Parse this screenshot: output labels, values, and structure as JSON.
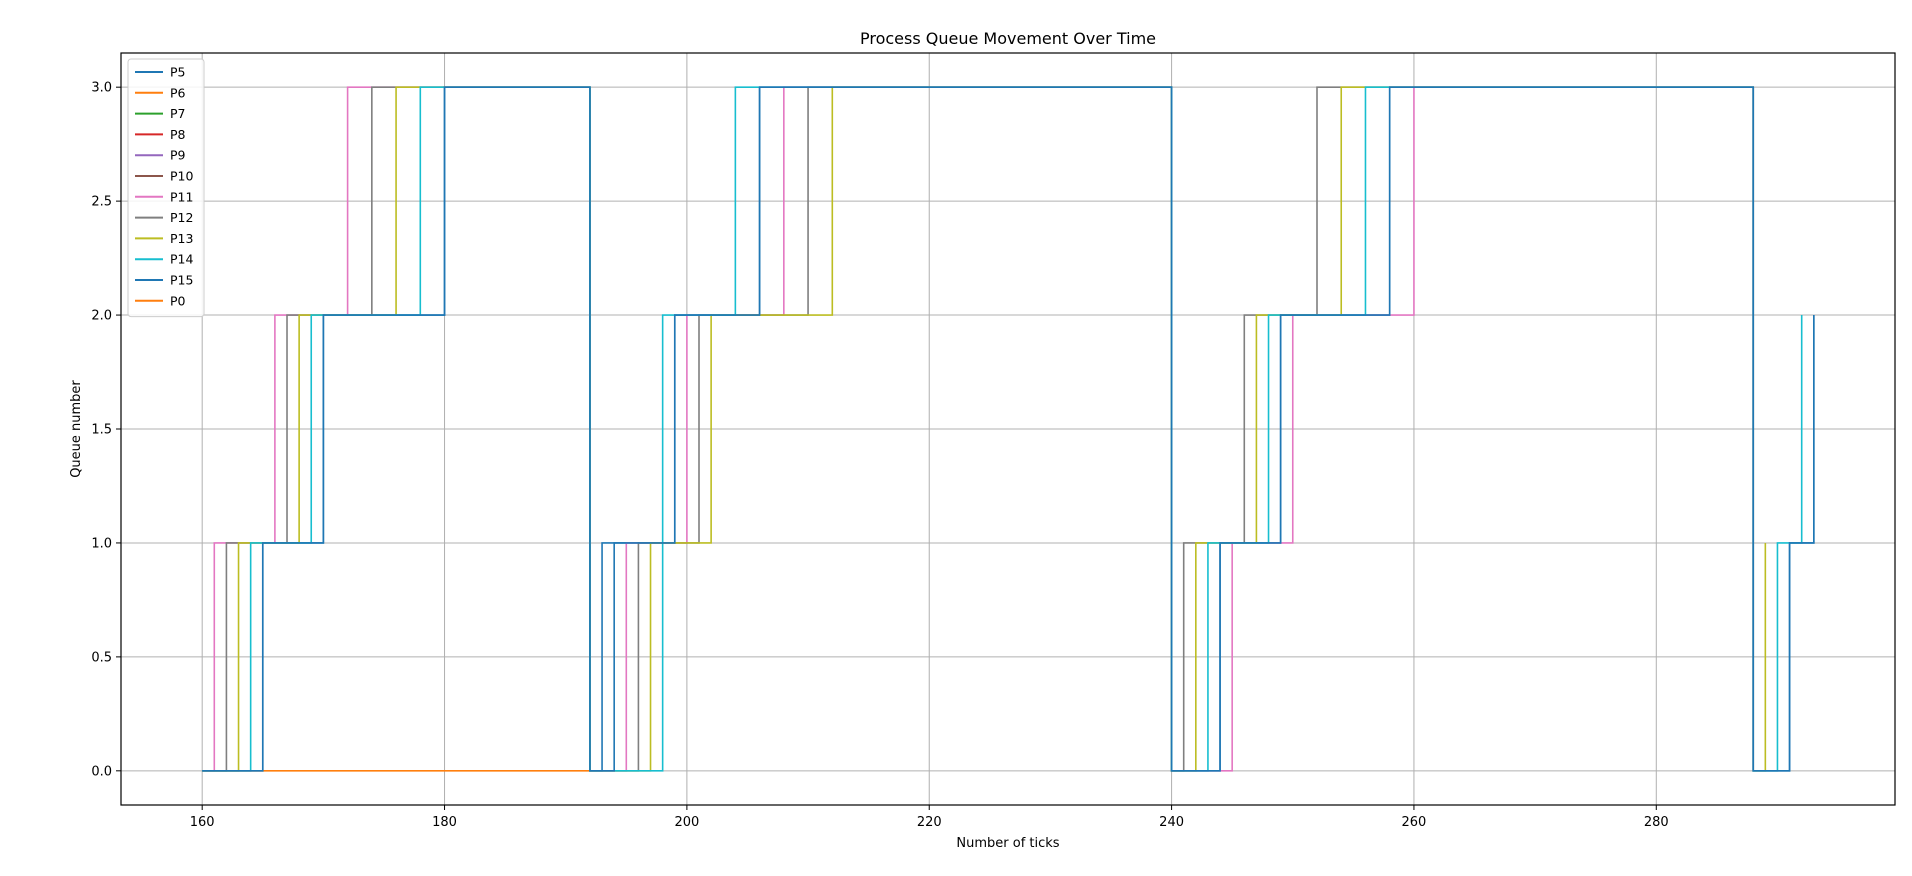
{
  "chart_data": {
    "type": "line",
    "step": "post",
    "title": "Process Queue Movement Over Time",
    "xlabel": "Number of ticks",
    "ylabel": "Queue number",
    "xlim": [
      153.3,
      299.7
    ],
    "ylim": [
      -0.15,
      3.15
    ],
    "xticks": [
      160,
      180,
      200,
      220,
      240,
      260,
      280
    ],
    "yticks": [
      0.0,
      0.5,
      1.0,
      1.5,
      2.0,
      2.5,
      3.0
    ],
    "xtick_labels": [
      "160",
      "180",
      "200",
      "220",
      "240",
      "260",
      "280"
    ],
    "ytick_labels": [
      "0.0",
      "0.5",
      "1.0",
      "1.5",
      "2.0",
      "2.5",
      "3.0"
    ],
    "grid": true,
    "legend_position": "upper-left",
    "series": [
      {
        "name": "P5",
        "color": "#1f77b4",
        "points": [
          [
            160,
            0
          ],
          [
            165,
            0
          ],
          [
            165,
            1
          ],
          [
            170,
            1
          ],
          [
            170,
            2
          ],
          [
            180,
            2
          ],
          [
            180,
            3
          ],
          [
            192,
            3
          ],
          [
            192,
            0
          ],
          [
            193,
            0
          ],
          [
            193,
            1
          ],
          [
            199,
            1
          ],
          [
            199,
            2
          ],
          [
            206,
            2
          ],
          [
            206,
            3
          ],
          [
            240,
            3
          ],
          [
            240,
            0
          ],
          [
            244,
            0
          ],
          [
            244,
            1
          ],
          [
            249,
            1
          ],
          [
            249,
            2
          ],
          [
            258,
            2
          ],
          [
            258,
            3
          ],
          [
            288,
            3
          ],
          [
            288,
            0
          ],
          [
            291,
            0
          ],
          [
            291,
            1
          ],
          [
            293,
            1
          ],
          [
            293,
            2
          ]
        ]
      },
      {
        "name": "P6",
        "color": "#ff7f0e",
        "points": [
          [
            160,
            0
          ],
          [
            192,
            0
          ]
        ]
      },
      {
        "name": "P7",
        "color": "#2ca02c",
        "points": []
      },
      {
        "name": "P8",
        "color": "#d62728",
        "points": []
      },
      {
        "name": "P9",
        "color": "#9467bd",
        "points": []
      },
      {
        "name": "P10",
        "color": "#8c564b",
        "points": []
      },
      {
        "name": "P11",
        "color": "#e377c2",
        "points": [
          [
            160,
            0
          ],
          [
            161,
            0
          ],
          [
            161,
            1
          ],
          [
            166,
            1
          ],
          [
            166,
            2
          ],
          [
            172,
            2
          ],
          [
            172,
            3
          ],
          [
            192,
            3
          ],
          [
            192,
            0
          ],
          [
            195,
            0
          ],
          [
            195,
            1
          ],
          [
            200,
            1
          ],
          [
            200,
            2
          ],
          [
            208,
            2
          ],
          [
            208,
            3
          ],
          [
            240,
            3
          ],
          [
            240,
            0
          ],
          [
            245,
            0
          ],
          [
            245,
            1
          ],
          [
            250,
            1
          ],
          [
            250,
            2
          ],
          [
            260,
            2
          ],
          [
            260,
            3
          ],
          [
            288,
            3
          ],
          [
            288,
            0
          ]
        ]
      },
      {
        "name": "P12",
        "color": "#7f7f7f",
        "points": [
          [
            160,
            0
          ],
          [
            162,
            0
          ],
          [
            162,
            1
          ],
          [
            167,
            1
          ],
          [
            167,
            2
          ],
          [
            174,
            2
          ],
          [
            174,
            3
          ],
          [
            192,
            3
          ],
          [
            192,
            0
          ],
          [
            196,
            0
          ],
          [
            196,
            1
          ],
          [
            201,
            1
          ],
          [
            201,
            2
          ],
          [
            210,
            2
          ],
          [
            210,
            3
          ],
          [
            240,
            3
          ],
          [
            240,
            0
          ],
          [
            241,
            0
          ],
          [
            241,
            1
          ],
          [
            246,
            1
          ],
          [
            246,
            2
          ],
          [
            252,
            2
          ],
          [
            252,
            3
          ],
          [
            288,
            3
          ],
          [
            288,
            0
          ]
        ]
      },
      {
        "name": "P13",
        "color": "#bcbd22",
        "points": [
          [
            160,
            0
          ],
          [
            163,
            0
          ],
          [
            163,
            1
          ],
          [
            168,
            1
          ],
          [
            168,
            2
          ],
          [
            176,
            2
          ],
          [
            176,
            3
          ],
          [
            192,
            3
          ],
          [
            192,
            0
          ],
          [
            197,
            0
          ],
          [
            197,
            1
          ],
          [
            202,
            1
          ],
          [
            202,
            2
          ],
          [
            212,
            2
          ],
          [
            212,
            3
          ],
          [
            240,
            3
          ],
          [
            240,
            0
          ],
          [
            242,
            0
          ],
          [
            242,
            1
          ],
          [
            247,
            1
          ],
          [
            247,
            2
          ],
          [
            254,
            2
          ],
          [
            254,
            3
          ],
          [
            288,
            3
          ],
          [
            288,
            0
          ],
          [
            289,
            0
          ],
          [
            289,
            1
          ]
        ]
      },
      {
        "name": "P14",
        "color": "#17becf",
        "points": [
          [
            160,
            0
          ],
          [
            164,
            0
          ],
          [
            164,
            1
          ],
          [
            169,
            1
          ],
          [
            169,
            2
          ],
          [
            178,
            2
          ],
          [
            178,
            3
          ],
          [
            192,
            3
          ],
          [
            192,
            0
          ],
          [
            198,
            0
          ],
          [
            198,
            2
          ],
          [
            204,
            2
          ],
          [
            204,
            3
          ],
          [
            240,
            3
          ],
          [
            240,
            0
          ],
          [
            243,
            0
          ],
          [
            243,
            1
          ],
          [
            248,
            1
          ],
          [
            248,
            2
          ],
          [
            256,
            2
          ],
          [
            256,
            3
          ],
          [
            288,
            3
          ],
          [
            288,
            0
          ],
          [
            290,
            0
          ],
          [
            290,
            1
          ],
          [
            292,
            1
          ],
          [
            292,
            2
          ]
        ]
      },
      {
        "name": "P15",
        "color": "#1f77b4",
        "points": [
          [
            160,
            0
          ],
          [
            165,
            0
          ],
          [
            165,
            1
          ],
          [
            170,
            1
          ],
          [
            170,
            2
          ],
          [
            180,
            2
          ],
          [
            180,
            3
          ],
          [
            192,
            3
          ],
          [
            192,
            0
          ],
          [
            194,
            0
          ],
          [
            194,
            1
          ],
          [
            199,
            1
          ],
          [
            199,
            2
          ],
          [
            206,
            2
          ],
          [
            206,
            3
          ],
          [
            240,
            3
          ],
          [
            240,
            0
          ],
          [
            244,
            0
          ],
          [
            244,
            1
          ],
          [
            249,
            1
          ],
          [
            249,
            2
          ],
          [
            258,
            2
          ],
          [
            258,
            3
          ],
          [
            288,
            3
          ],
          [
            288,
            0
          ],
          [
            291,
            0
          ],
          [
            291,
            1
          ],
          [
            293,
            1
          ],
          [
            293,
            2
          ]
        ]
      },
      {
        "name": "P0",
        "color": "#ff7f0e",
        "points": []
      }
    ]
  }
}
